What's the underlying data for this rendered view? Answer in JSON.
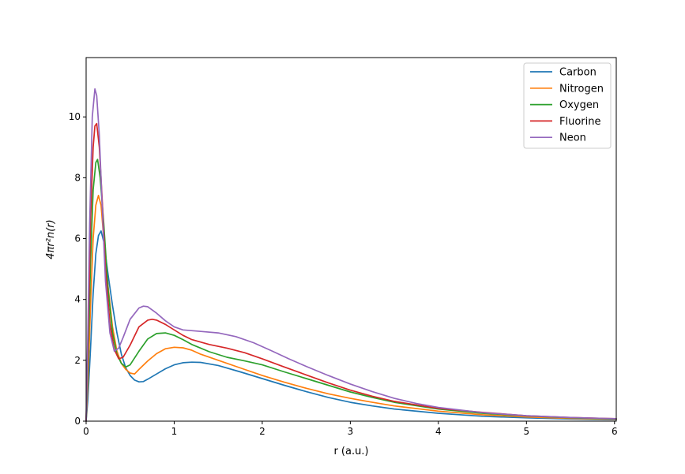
{
  "chart_data": {
    "type": "line",
    "title": "",
    "xlabel": "r (a.u.)",
    "ylabel": "4πr²n(r)",
    "xlim": [
      0,
      6.02
    ],
    "ylim": [
      0,
      11.95
    ],
    "xticks": [
      0,
      1,
      2,
      3,
      4,
      5,
      6
    ],
    "yticks": [
      0,
      2,
      4,
      6,
      8,
      10
    ],
    "grid": false,
    "legend_position": "top-right",
    "series": [
      {
        "name": "Carbon",
        "color": "#1f77b4",
        "points": [
          [
            0,
            0
          ],
          [
            0.02,
            0.7
          ],
          [
            0.05,
            2.4
          ],
          [
            0.08,
            4.2
          ],
          [
            0.11,
            5.5
          ],
          [
            0.14,
            6.1
          ],
          [
            0.17,
            6.25
          ],
          [
            0.2,
            5.9
          ],
          [
            0.25,
            4.8
          ],
          [
            0.3,
            3.8
          ],
          [
            0.35,
            2.9
          ],
          [
            0.4,
            2.2
          ],
          [
            0.45,
            1.75
          ],
          [
            0.5,
            1.5
          ],
          [
            0.55,
            1.35
          ],
          [
            0.6,
            1.29
          ],
          [
            0.65,
            1.3
          ],
          [
            0.7,
            1.38
          ],
          [
            0.8,
            1.55
          ],
          [
            0.9,
            1.72
          ],
          [
            1.0,
            1.85
          ],
          [
            1.1,
            1.92
          ],
          [
            1.2,
            1.94
          ],
          [
            1.3,
            1.93
          ],
          [
            1.5,
            1.83
          ],
          [
            1.75,
            1.62
          ],
          [
            2.0,
            1.4
          ],
          [
            2.25,
            1.18
          ],
          [
            2.5,
            0.97
          ],
          [
            2.75,
            0.78
          ],
          [
            3.0,
            0.62
          ],
          [
            3.25,
            0.5
          ],
          [
            3.5,
            0.4
          ],
          [
            4.0,
            0.26
          ],
          [
            4.5,
            0.16
          ],
          [
            5.0,
            0.11
          ],
          [
            5.5,
            0.07
          ],
          [
            6.02,
            0.05
          ]
        ]
      },
      {
        "name": "Nitrogen",
        "color": "#ff7f0e",
        "points": [
          [
            0,
            0
          ],
          [
            0.02,
            1.2
          ],
          [
            0.05,
            3.8
          ],
          [
            0.08,
            6.0
          ],
          [
            0.11,
            7.1
          ],
          [
            0.14,
            7.42
          ],
          [
            0.17,
            7.1
          ],
          [
            0.2,
            6.0
          ],
          [
            0.25,
            4.4
          ],
          [
            0.3,
            3.1
          ],
          [
            0.35,
            2.3
          ],
          [
            0.4,
            1.9
          ],
          [
            0.45,
            1.7
          ],
          [
            0.5,
            1.58
          ],
          [
            0.55,
            1.55
          ],
          [
            0.6,
            1.7
          ],
          [
            0.7,
            1.98
          ],
          [
            0.8,
            2.22
          ],
          [
            0.9,
            2.38
          ],
          [
            1.0,
            2.43
          ],
          [
            1.1,
            2.41
          ],
          [
            1.2,
            2.33
          ],
          [
            1.3,
            2.2
          ],
          [
            1.5,
            2.0
          ],
          [
            1.75,
            1.75
          ],
          [
            2.0,
            1.5
          ],
          [
            2.25,
            1.28
          ],
          [
            2.5,
            1.08
          ],
          [
            2.75,
            0.9
          ],
          [
            3.0,
            0.75
          ],
          [
            3.25,
            0.62
          ],
          [
            3.5,
            0.5
          ],
          [
            4.0,
            0.33
          ],
          [
            4.5,
            0.21
          ],
          [
            5.0,
            0.14
          ],
          [
            5.5,
            0.09
          ],
          [
            6.02,
            0.06
          ]
        ]
      },
      {
        "name": "Oxygen",
        "color": "#2ca02c",
        "points": [
          [
            0,
            0
          ],
          [
            0.02,
            1.7
          ],
          [
            0.05,
            5.2
          ],
          [
            0.08,
            7.6
          ],
          [
            0.11,
            8.5
          ],
          [
            0.13,
            8.6
          ],
          [
            0.16,
            8.0
          ],
          [
            0.2,
            6.5
          ],
          [
            0.25,
            4.3
          ],
          [
            0.3,
            2.9
          ],
          [
            0.35,
            2.2
          ],
          [
            0.4,
            1.9
          ],
          [
            0.45,
            1.78
          ],
          [
            0.5,
            1.85
          ],
          [
            0.6,
            2.3
          ],
          [
            0.7,
            2.7
          ],
          [
            0.8,
            2.88
          ],
          [
            0.9,
            2.9
          ],
          [
            1.0,
            2.82
          ],
          [
            1.1,
            2.68
          ],
          [
            1.2,
            2.52
          ],
          [
            1.4,
            2.28
          ],
          [
            1.6,
            2.1
          ],
          [
            1.8,
            1.98
          ],
          [
            2.0,
            1.85
          ],
          [
            2.25,
            1.62
          ],
          [
            2.5,
            1.4
          ],
          [
            2.75,
            1.18
          ],
          [
            3.0,
            0.96
          ],
          [
            3.25,
            0.78
          ],
          [
            3.5,
            0.62
          ],
          [
            4.0,
            0.4
          ],
          [
            4.5,
            0.26
          ],
          [
            5.0,
            0.17
          ],
          [
            5.5,
            0.11
          ],
          [
            6.02,
            0.07
          ]
        ]
      },
      {
        "name": "Fluorine",
        "color": "#d62728",
        "points": [
          [
            0,
            0
          ],
          [
            0.02,
            2.3
          ],
          [
            0.05,
            6.6
          ],
          [
            0.08,
            9.0
          ],
          [
            0.1,
            9.7
          ],
          [
            0.12,
            9.78
          ],
          [
            0.15,
            9.0
          ],
          [
            0.18,
            7.4
          ],
          [
            0.22,
            5.0
          ],
          [
            0.27,
            3.2
          ],
          [
            0.32,
            2.35
          ],
          [
            0.37,
            2.05
          ],
          [
            0.42,
            2.1
          ],
          [
            0.5,
            2.5
          ],
          [
            0.6,
            3.1
          ],
          [
            0.7,
            3.32
          ],
          [
            0.75,
            3.35
          ],
          [
            0.8,
            3.32
          ],
          [
            0.9,
            3.18
          ],
          [
            1.0,
            3.0
          ],
          [
            1.1,
            2.82
          ],
          [
            1.2,
            2.68
          ],
          [
            1.4,
            2.52
          ],
          [
            1.6,
            2.4
          ],
          [
            1.8,
            2.25
          ],
          [
            2.0,
            2.05
          ],
          [
            2.25,
            1.78
          ],
          [
            2.5,
            1.52
          ],
          [
            2.75,
            1.26
          ],
          [
            3.0,
            1.02
          ],
          [
            3.25,
            0.82
          ],
          [
            3.5,
            0.65
          ],
          [
            4.0,
            0.42
          ],
          [
            4.5,
            0.29
          ],
          [
            5.0,
            0.18
          ],
          [
            5.5,
            0.12
          ],
          [
            6.02,
            0.08
          ]
        ]
      },
      {
        "name": "Neon",
        "color": "#9467bd",
        "points": [
          [
            0,
            0
          ],
          [
            0.02,
            3.0
          ],
          [
            0.04,
            6.5
          ],
          [
            0.07,
            10.0
          ],
          [
            0.1,
            10.92
          ],
          [
            0.12,
            10.7
          ],
          [
            0.15,
            9.4
          ],
          [
            0.18,
            7.2
          ],
          [
            0.22,
            4.6
          ],
          [
            0.27,
            2.9
          ],
          [
            0.32,
            2.3
          ],
          [
            0.37,
            2.4
          ],
          [
            0.42,
            2.75
          ],
          [
            0.5,
            3.35
          ],
          [
            0.6,
            3.72
          ],
          [
            0.65,
            3.78
          ],
          [
            0.7,
            3.76
          ],
          [
            0.8,
            3.55
          ],
          [
            0.9,
            3.3
          ],
          [
            1.0,
            3.1
          ],
          [
            1.1,
            3.0
          ],
          [
            1.3,
            2.95
          ],
          [
            1.5,
            2.9
          ],
          [
            1.7,
            2.78
          ],
          [
            1.9,
            2.58
          ],
          [
            2.1,
            2.32
          ],
          [
            2.3,
            2.05
          ],
          [
            2.5,
            1.8
          ],
          [
            2.75,
            1.5
          ],
          [
            3.0,
            1.22
          ],
          [
            3.25,
            0.97
          ],
          [
            3.5,
            0.75
          ],
          [
            3.75,
            0.58
          ],
          [
            4.0,
            0.45
          ],
          [
            4.5,
            0.28
          ],
          [
            5.0,
            0.18
          ],
          [
            5.5,
            0.12
          ],
          [
            6.02,
            0.08
          ]
        ]
      }
    ]
  }
}
